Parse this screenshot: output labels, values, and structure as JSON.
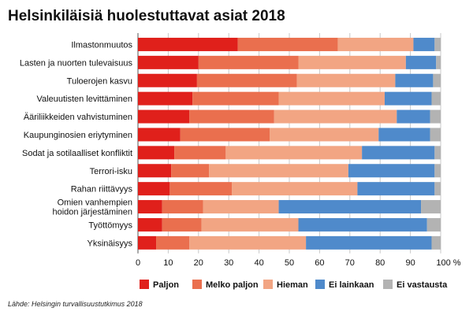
{
  "chart_data": {
    "type": "bar",
    "orientation": "horizontal",
    "stacked": true,
    "title": "Helsinkiläisiä huolestuttavat asiat 2018",
    "source": "Lähde: Helsingin turvallisuustutkimus 2018",
    "categories": [
      "Ilmastonmuutos",
      "Lasten ja nuorten tulevaisuus",
      "Tuloerojen kasvu",
      "Valeuutisten levittäminen",
      "Ääriliikkeiden vahvistuminen",
      "Kaupunginosien eriytyminen",
      "Sodat ja sotilaalliset konfliktit",
      "Terrori-isku",
      "Rahan riittävyys",
      "Omien vanhempien hoidon järjestäminen",
      "Työttömyys",
      "Yksinäisyys"
    ],
    "category_lines": [
      [
        "Ilmastonmuutos"
      ],
      [
        "Lasten ja nuorten tulevaisuus"
      ],
      [
        "Tuloerojen kasvu"
      ],
      [
        "Valeuutisten levittäminen"
      ],
      [
        "Ääriliikkeiden vahvistuminen"
      ],
      [
        "Kaupunginosien eriytyminen"
      ],
      [
        "Sodat ja sotilaalliset konfliktit"
      ],
      [
        "Terrori-isku"
      ],
      [
        "Rahan riittävyys"
      ],
      [
        "Omien vanhempien",
        "hoidon järjestäminen"
      ],
      [
        "Työttömyys"
      ],
      [
        "Yksinäisyys"
      ]
    ],
    "series": [
      {
        "name": "Paljon",
        "color": "#e0201b",
        "values": [
          33,
          20,
          19.5,
          18,
          17,
          14,
          12,
          11,
          10.5,
          8,
          8,
          6
        ]
      },
      {
        "name": "Melko paljon",
        "color": "#ea6f4e",
        "values": [
          33,
          33,
          33,
          28.5,
          28,
          29.5,
          17,
          12.5,
          20.5,
          13.5,
          13,
          11
        ]
      },
      {
        "name": "Hieman",
        "color": "#f2a583",
        "values": [
          25,
          35.5,
          32.5,
          35,
          40.5,
          36,
          45,
          46,
          41.5,
          25,
          32,
          38.5
        ]
      },
      {
        "name": "Ei lainkaan",
        "color": "#4f8acb",
        "values": [
          7,
          10,
          12.5,
          15.5,
          11,
          17,
          24,
          28.5,
          25.5,
          47,
          42.5,
          41.5
        ]
      },
      {
        "name": "Ei vastausta",
        "color": "#b3b3b3",
        "values": [
          2,
          1.5,
          2.5,
          3,
          3.5,
          3.5,
          2,
          2,
          2,
          6.5,
          4.5,
          3
        ]
      }
    ],
    "x_ticks": [
      "0",
      "10",
      "20",
      "30",
      "40",
      "50",
      "60",
      "70",
      "80",
      "90",
      "100 %"
    ],
    "xlim": [
      0,
      100
    ],
    "grid": true,
    "legend_position": "bottom"
  }
}
